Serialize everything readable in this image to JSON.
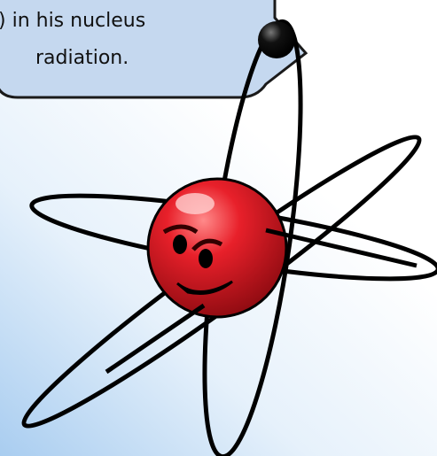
{
  "callout": {
    "lines": [
      ") in his nucleus",
      "radiation."
    ]
  }
}
